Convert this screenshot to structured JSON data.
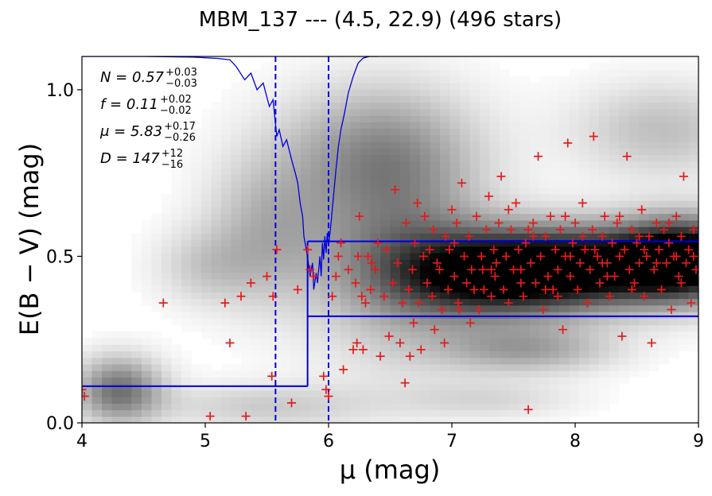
{
  "chart_data": {
    "type": "scatter",
    "title": "MBM_137 --- (4.5, 22.9) (496 stars)",
    "xlabel": "μ (mag)",
    "ylabel": "E(B − V) (mag)",
    "xlim": [
      4,
      9
    ],
    "ylim": [
      0,
      1.1
    ],
    "x_ticks": [
      "4",
      "5",
      "6",
      "7",
      "8",
      "9"
    ],
    "y_ticks": [
      "0.0",
      "0.5",
      "1.0"
    ],
    "grid": false,
    "annotations": [
      "N = 0.57 +0.03 −0.03",
      "f = 0.11 +0.02 −0.02",
      "μ = 5.83 +0.17 −0.26",
      "D = 147 +12 −16"
    ],
    "colors": {
      "points": "#e41a1c",
      "model": "#0000dd",
      "density": "#000000"
    },
    "vlines_dashed": [
      5.57,
      6.0
    ],
    "foreground_ebv": 0.11,
    "step_distance": 5.83,
    "band_lower": 0.32,
    "band_upper": 0.545,
    "density_blobs": [
      {
        "x": 8.15,
        "y": 0.47,
        "sx": 0.75,
        "sy": 0.085,
        "a": 1.0
      },
      {
        "x": 7.3,
        "y": 0.44,
        "sx": 0.55,
        "sy": 0.09,
        "a": 0.7
      },
      {
        "x": 8.9,
        "y": 0.5,
        "sx": 0.35,
        "sy": 0.08,
        "a": 0.85
      },
      {
        "x": 6.55,
        "y": 0.52,
        "sx": 0.5,
        "sy": 0.22,
        "a": 0.4
      },
      {
        "x": 6.4,
        "y": 0.82,
        "sx": 0.55,
        "sy": 0.14,
        "a": 0.35
      },
      {
        "x": 5.5,
        "y": 0.58,
        "sx": 0.35,
        "sy": 0.16,
        "a": 0.28
      },
      {
        "x": 5.0,
        "y": 0.47,
        "sx": 0.3,
        "sy": 0.08,
        "a": 0.18
      },
      {
        "x": 4.3,
        "y": 0.1,
        "sx": 0.25,
        "sy": 0.07,
        "a": 0.55
      },
      {
        "x": 5.5,
        "y": 0.05,
        "sx": 0.6,
        "sy": 0.05,
        "a": 0.2
      },
      {
        "x": 7.6,
        "y": 0.22,
        "sx": 0.5,
        "sy": 0.05,
        "a": 0.35
      },
      {
        "x": 8.7,
        "y": 0.88,
        "sx": 0.5,
        "sy": 0.1,
        "a": 0.25
      },
      {
        "x": 7.3,
        "y": 0.07,
        "sx": 0.5,
        "sy": 0.04,
        "a": 0.15
      }
    ],
    "pvalue_curve": [
      [
        4.0,
        1.1
      ],
      [
        4.5,
        1.1
      ],
      [
        4.9,
        1.098
      ],
      [
        5.1,
        1.094
      ],
      [
        5.2,
        1.09
      ],
      [
        5.25,
        1.07
      ],
      [
        5.32,
        1.03
      ],
      [
        5.37,
        1.05
      ],
      [
        5.42,
        1.0
      ],
      [
        5.47,
        1.02
      ],
      [
        5.52,
        0.95
      ],
      [
        5.55,
        0.97
      ],
      [
        5.58,
        0.86
      ],
      [
        5.6,
        0.88
      ],
      [
        5.63,
        0.83
      ],
      [
        5.66,
        0.85
      ],
      [
        5.7,
        0.79
      ],
      [
        5.73,
        0.75
      ],
      [
        5.75,
        0.72
      ],
      [
        5.77,
        0.66
      ],
      [
        5.79,
        0.62
      ],
      [
        5.8,
        0.56
      ],
      [
        5.82,
        0.52
      ],
      [
        5.84,
        0.47
      ],
      [
        5.85,
        0.44
      ],
      [
        5.87,
        0.48
      ],
      [
        5.88,
        0.4
      ],
      [
        5.9,
        0.45
      ],
      [
        5.91,
        0.42
      ],
      [
        5.93,
        0.5
      ],
      [
        5.94,
        0.44
      ],
      [
        5.95,
        0.54
      ],
      [
        5.96,
        0.49
      ],
      [
        5.97,
        0.56
      ],
      [
        5.98,
        0.51
      ],
      [
        5.99,
        0.57
      ],
      [
        6.0,
        0.53
      ],
      [
        6.02,
        0.6
      ],
      [
        6.04,
        0.68
      ],
      [
        6.06,
        0.76
      ],
      [
        6.08,
        0.83
      ],
      [
        6.1,
        0.88
      ],
      [
        6.13,
        0.93
      ],
      [
        6.16,
        0.99
      ],
      [
        6.2,
        1.04
      ],
      [
        6.24,
        1.08
      ],
      [
        6.28,
        1.095
      ],
      [
        6.33,
        1.1
      ],
      [
        6.4,
        1.1
      ]
    ],
    "points": [
      [
        4.0,
        0.1
      ],
      [
        4.02,
        0.08
      ],
      [
        4.66,
        0.36
      ],
      [
        5.04,
        0.02
      ],
      [
        5.16,
        0.36
      ],
      [
        5.2,
        0.24
      ],
      [
        5.29,
        0.38
      ],
      [
        5.33,
        0.02
      ],
      [
        5.37,
        0.42
      ],
      [
        5.5,
        0.44
      ],
      [
        5.54,
        0.14
      ],
      [
        5.55,
        0.38
      ],
      [
        5.58,
        0.52
      ],
      [
        5.7,
        0.06
      ],
      [
        5.75,
        0.4
      ],
      [
        5.83,
        0.52
      ],
      [
        5.85,
        0.46
      ],
      [
        5.88,
        0.44
      ],
      [
        5.96,
        0.14
      ],
      [
        5.98,
        0.1
      ],
      [
        6.0,
        0.08
      ],
      [
        6.03,
        0.38
      ],
      [
        6.06,
        0.44
      ],
      [
        6.08,
        0.5
      ],
      [
        6.1,
        0.54
      ],
      [
        6.12,
        0.16
      ],
      [
        6.16,
        0.46
      ],
      [
        6.2,
        0.22
      ],
      [
        6.22,
        0.42
      ],
      [
        6.23,
        0.24
      ],
      [
        6.24,
        0.5
      ],
      [
        6.25,
        0.62
      ],
      [
        6.27,
        0.38
      ],
      [
        6.28,
        0.22
      ],
      [
        6.3,
        0.36
      ],
      [
        6.32,
        0.5
      ],
      [
        6.34,
        0.4
      ],
      [
        6.35,
        0.48
      ],
      [
        6.38,
        0.46
      ],
      [
        6.4,
        0.54
      ],
      [
        6.42,
        0.2
      ],
      [
        6.45,
        0.38
      ],
      [
        6.47,
        0.52
      ],
      [
        6.49,
        0.26
      ],
      [
        6.52,
        0.42
      ],
      [
        6.54,
        0.7
      ],
      [
        6.56,
        0.48
      ],
      [
        6.58,
        0.24
      ],
      [
        6.6,
        0.36
      ],
      [
        6.62,
        0.12
      ],
      [
        6.63,
        0.6
      ],
      [
        6.65,
        0.4
      ],
      [
        6.66,
        0.2
      ],
      [
        6.68,
        0.46
      ],
      [
        6.69,
        0.3
      ],
      [
        6.7,
        0.54
      ],
      [
        6.72,
        0.66
      ],
      [
        6.73,
        0.36
      ],
      [
        6.75,
        0.22
      ],
      [
        6.77,
        0.5
      ],
      [
        6.78,
        0.62
      ],
      [
        6.8,
        0.42
      ],
      [
        6.82,
        0.52
      ],
      [
        6.84,
        0.38
      ],
      [
        6.85,
        0.58
      ],
      [
        6.88,
        0.48
      ],
      [
        6.9,
        0.46
      ],
      [
        6.92,
        0.34
      ],
      [
        6.94,
        0.24
      ],
      [
        6.95,
        0.56
      ],
      [
        6.97,
        0.4
      ],
      [
        6.98,
        0.52
      ],
      [
        7.0,
        0.64
      ],
      [
        7.02,
        0.44
      ],
      [
        7.04,
        0.6
      ],
      [
        7.05,
        0.36
      ],
      [
        7.08,
        0.72
      ],
      [
        7.1,
        0.5
      ],
      [
        7.12,
        0.42
      ],
      [
        7.14,
        0.56
      ],
      [
        7.15,
        0.3
      ],
      [
        7.18,
        0.4
      ],
      [
        7.2,
        0.62
      ],
      [
        7.22,
        0.34
      ],
      [
        7.24,
        0.5
      ],
      [
        7.25,
        0.46
      ],
      [
        7.28,
        0.58
      ],
      [
        7.3,
        0.68
      ],
      [
        7.32,
        0.38
      ],
      [
        7.34,
        0.52
      ],
      [
        7.35,
        0.44
      ],
      [
        7.38,
        0.6
      ],
      [
        7.4,
        0.74
      ],
      [
        7.42,
        0.4
      ],
      [
        7.44,
        0.5
      ],
      [
        7.46,
        0.36
      ],
      [
        7.48,
        0.58
      ],
      [
        7.5,
        0.46
      ],
      [
        7.52,
        0.66
      ],
      [
        7.54,
        0.52
      ],
      [
        7.56,
        0.42
      ],
      [
        7.58,
        0.38
      ],
      [
        7.6,
        0.54
      ],
      [
        7.62,
        0.04
      ],
      [
        7.64,
        0.48
      ],
      [
        7.66,
        0.6
      ],
      [
        7.68,
        0.42
      ],
      [
        7.7,
        0.8
      ],
      [
        7.72,
        0.5
      ],
      [
        7.74,
        0.34
      ],
      [
        7.76,
        0.56
      ],
      [
        7.78,
        0.44
      ],
      [
        7.8,
        0.62
      ],
      [
        7.82,
        0.4
      ],
      [
        7.84,
        0.52
      ],
      [
        7.86,
        0.46
      ],
      [
        7.88,
        0.58
      ],
      [
        7.9,
        0.28
      ],
      [
        7.92,
        0.5
      ],
      [
        7.94,
        0.84
      ],
      [
        7.96,
        0.44
      ],
      [
        7.98,
        0.54
      ],
      [
        8.0,
        0.6
      ],
      [
        8.02,
        0.4
      ],
      [
        8.04,
        0.48
      ],
      [
        8.06,
        0.66
      ],
      [
        8.08,
        0.52
      ],
      [
        8.1,
        0.36
      ],
      [
        8.12,
        0.46
      ],
      [
        8.14,
        0.58
      ],
      [
        8.15,
        0.86
      ],
      [
        8.18,
        0.5
      ],
      [
        8.2,
        0.42
      ],
      [
        8.22,
        0.56
      ],
      [
        8.24,
        0.62
      ],
      [
        8.26,
        0.48
      ],
      [
        8.28,
        0.38
      ],
      [
        8.3,
        0.54
      ],
      [
        8.32,
        0.44
      ],
      [
        8.34,
        0.6
      ],
      [
        8.36,
        0.5
      ],
      [
        8.38,
        0.26
      ],
      [
        8.4,
        0.52
      ],
      [
        8.42,
        0.8
      ],
      [
        8.44,
        0.46
      ],
      [
        8.46,
        0.58
      ],
      [
        8.48,
        0.42
      ],
      [
        8.5,
        0.54
      ],
      [
        8.52,
        0.48
      ],
      [
        8.54,
        0.64
      ],
      [
        8.56,
        0.38
      ],
      [
        8.58,
        0.5
      ],
      [
        8.6,
        0.56
      ],
      [
        8.62,
        0.24
      ],
      [
        8.64,
        0.46
      ],
      [
        8.66,
        0.6
      ],
      [
        8.68,
        0.52
      ],
      [
        8.7,
        0.4
      ],
      [
        8.72,
        0.58
      ],
      [
        8.74,
        0.48
      ],
      [
        8.76,
        0.54
      ],
      [
        8.78,
        0.34
      ],
      [
        8.8,
        0.5
      ],
      [
        8.82,
        0.62
      ],
      [
        8.84,
        0.44
      ],
      [
        8.86,
        0.56
      ],
      [
        8.88,
        0.74
      ],
      [
        8.9,
        0.48
      ],
      [
        8.92,
        0.52
      ],
      [
        8.94,
        0.36
      ],
      [
        8.96,
        0.58
      ],
      [
        8.98,
        0.46
      ],
      [
        7.06,
        0.34
      ],
      [
        7.36,
        0.48
      ],
      [
        7.66,
        0.56
      ],
      [
        7.96,
        0.5
      ],
      [
        8.26,
        0.44
      ],
      [
        8.56,
        0.52
      ],
      [
        8.86,
        0.42
      ],
      [
        7.16,
        0.46
      ],
      [
        7.46,
        0.64
      ],
      [
        7.76,
        0.4
      ],
      [
        8.06,
        0.56
      ],
      [
        8.36,
        0.62
      ],
      [
        8.66,
        0.48
      ],
      [
        8.96,
        0.5
      ],
      [
        6.86,
        0.28
      ],
      [
        7.26,
        0.4
      ],
      [
        7.56,
        0.46
      ],
      [
        7.86,
        0.38
      ],
      [
        8.16,
        0.52
      ],
      [
        8.46,
        0.4
      ],
      [
        8.76,
        0.6
      ],
      [
        7.02,
        0.54
      ],
      [
        7.32,
        0.46
      ],
      [
        7.62,
        0.58
      ],
      [
        7.92,
        0.62
      ],
      [
        8.22,
        0.48
      ],
      [
        8.52,
        0.56
      ],
      [
        8.82,
        0.5
      ]
    ]
  }
}
